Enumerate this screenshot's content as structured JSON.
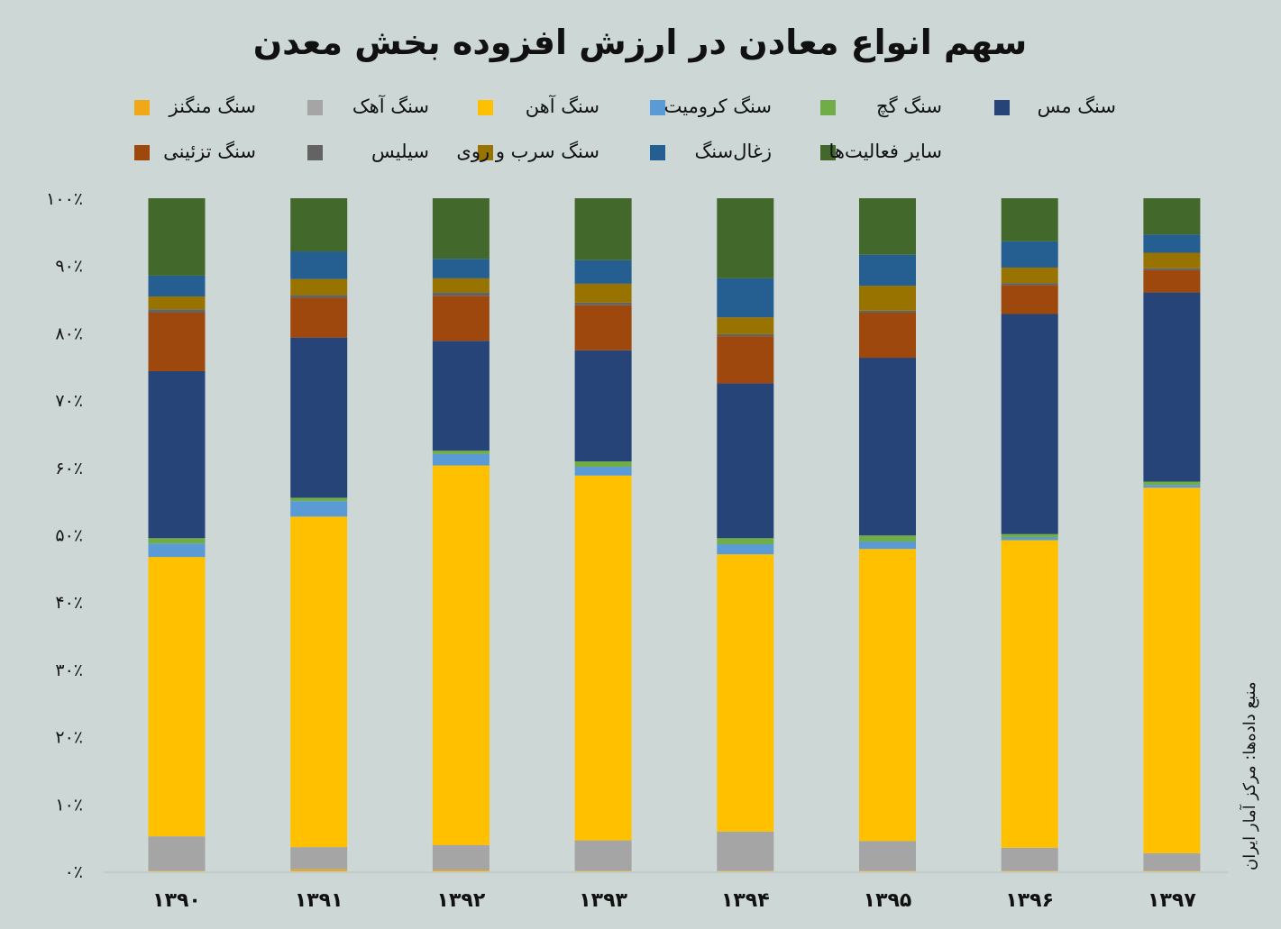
{
  "chart_data": {
    "type": "bar",
    "stacked": true,
    "percent": true,
    "title": "سهم انواع معادن در ارزش افزوده بخش معدن",
    "source": "منبع داده‌ها: مرکز آمار ایران",
    "categories": [
      "۱۳۹۰",
      "۱۳۹۱",
      "۱۳۹۲",
      "۱۳۹۳",
      "۱۳۹۴",
      "۱۳۹۵",
      "۱۳۹۶",
      "۱۳۹۷"
    ],
    "yticks": [
      "۰٪",
      "۱۰٪",
      "۲۰٪",
      "۳۰٪",
      "۴۰٪",
      "۵۰٪",
      "۶۰٪",
      "۷۰٪",
      "۸۰٪",
      "۹۰٪",
      "۱۰۰٪"
    ],
    "ylim": [
      0,
      100
    ],
    "legend_position": "top",
    "grid": false,
    "series": [
      {
        "name": "سنگ منگنز",
        "color": "#f0a818",
        "values": [
          0.1,
          0.3,
          0.2,
          0.1,
          0.1,
          0.1,
          0.1,
          0.1
        ]
      },
      {
        "name": "سنگ آهک",
        "color": "#a5a5a5",
        "values": [
          5.1,
          3.3,
          3.7,
          4.5,
          5.8,
          4.4,
          3.4,
          2.6
        ]
      },
      {
        "name": "سنگ آهن",
        "color": "#ffc000",
        "values": [
          41.5,
          49.1,
          56.4,
          54.2,
          41.2,
          43.4,
          45.7,
          54.3
        ]
      },
      {
        "name": "سنگ کرومیت",
        "color": "#5b9bd5",
        "values": [
          2.0,
          2.3,
          1.7,
          1.3,
          1.5,
          1.1,
          0.4,
          0.4
        ]
      },
      {
        "name": "سنگ گچ",
        "color": "#70ad47",
        "values": [
          0.8,
          0.5,
          0.5,
          0.8,
          0.9,
          0.9,
          0.5,
          0.5
        ]
      },
      {
        "name": "سنگ مس",
        "color": "#264478",
        "values": [
          24.8,
          23.8,
          16.3,
          16.5,
          23.0,
          26.4,
          32.7,
          28.1
        ]
      },
      {
        "name": "سنگ تزئینی",
        "color": "#9e480e",
        "values": [
          8.7,
          5.9,
          6.7,
          6.7,
          7.0,
          6.7,
          4.3,
          3.3
        ]
      },
      {
        "name": "سیلیس",
        "color": "#636363",
        "values": [
          0.5,
          0.4,
          0.5,
          0.4,
          0.3,
          0.3,
          0.3,
          0.3
        ]
      },
      {
        "name": "سنگ سرب و روی",
        "color": "#997300",
        "values": [
          1.9,
          2.4,
          2.1,
          2.8,
          2.5,
          3.7,
          2.3,
          2.3
        ]
      },
      {
        "name": "زغال‌سنگ",
        "color": "#255e91",
        "values": [
          3.1,
          4.1,
          2.9,
          3.5,
          5.8,
          4.6,
          3.9,
          2.7
        ]
      },
      {
        "name": "سایر فعالیت‌ها",
        "color": "#43682b",
        "values": [
          11.5,
          7.9,
          9.0,
          9.2,
          11.9,
          8.4,
          6.4,
          5.4
        ]
      }
    ]
  }
}
